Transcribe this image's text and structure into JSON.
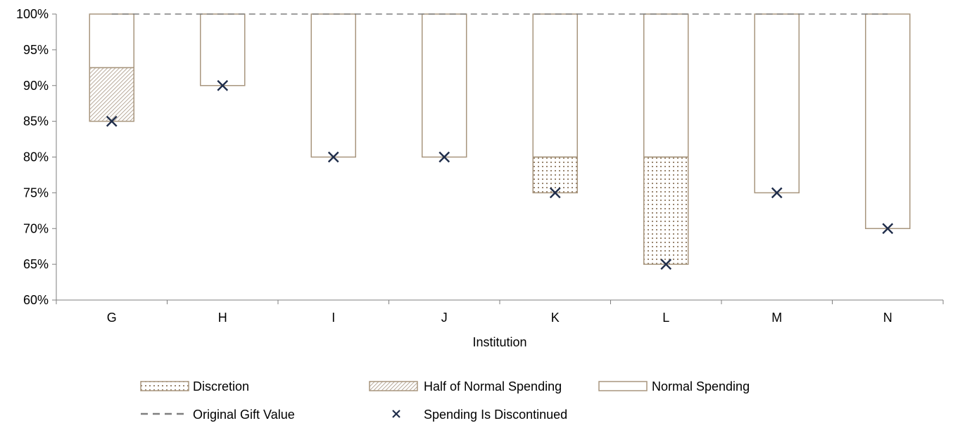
{
  "chart_data": {
    "type": "bar",
    "xlabel": "Institution",
    "ylabel": "",
    "ylim": [
      0.6,
      1.0
    ],
    "yticks": [
      0.6,
      0.65,
      0.7,
      0.75,
      0.8,
      0.85,
      0.9,
      0.95,
      1.0
    ],
    "ytick_labels": [
      "60%",
      "65%",
      "70%",
      "75%",
      "80%",
      "85%",
      "90%",
      "95%",
      "100%"
    ],
    "categories": [
      "G",
      "H",
      "I",
      "J",
      "K",
      "L",
      "M",
      "N"
    ],
    "series": [
      {
        "name": "Normal Spending",
        "key": "normal",
        "pattern": "none",
        "ranges": [
          [
            0.925,
            1.0
          ],
          [
            0.9,
            1.0
          ],
          [
            0.8,
            1.0
          ],
          [
            0.8,
            1.0
          ],
          [
            0.8,
            1.0
          ],
          [
            0.8,
            1.0
          ],
          [
            0.75,
            1.0
          ],
          [
            0.7,
            1.0
          ]
        ]
      },
      {
        "name": "Half of Normal Spending",
        "key": "half",
        "pattern": "hatch",
        "ranges": [
          [
            0.85,
            0.925
          ],
          null,
          null,
          null,
          null,
          null,
          null,
          null
        ]
      },
      {
        "name": "Discretion",
        "key": "discretion",
        "pattern": "dots",
        "ranges": [
          null,
          null,
          null,
          null,
          [
            0.75,
            0.8
          ],
          [
            0.65,
            0.8
          ],
          null,
          null
        ]
      }
    ],
    "original_gift_value": 1.0,
    "spending_discontinued": [
      0.85,
      0.9,
      0.8,
      0.8,
      0.75,
      0.65,
      0.75,
      0.7
    ],
    "grid": false,
    "legend_position": "bottom",
    "legend": [
      [
        "Discretion",
        "Half of Normal Spending",
        "Normal Spending"
      ],
      [
        "Original Gift Value",
        "Spending Is Discontinued"
      ]
    ],
    "colors": {
      "bar_edge": "#a8967e",
      "pattern": "#9a8670",
      "line": "#7f7f7f",
      "marker": "#1f2d4a",
      "axis": "#7f7f7f"
    }
  }
}
